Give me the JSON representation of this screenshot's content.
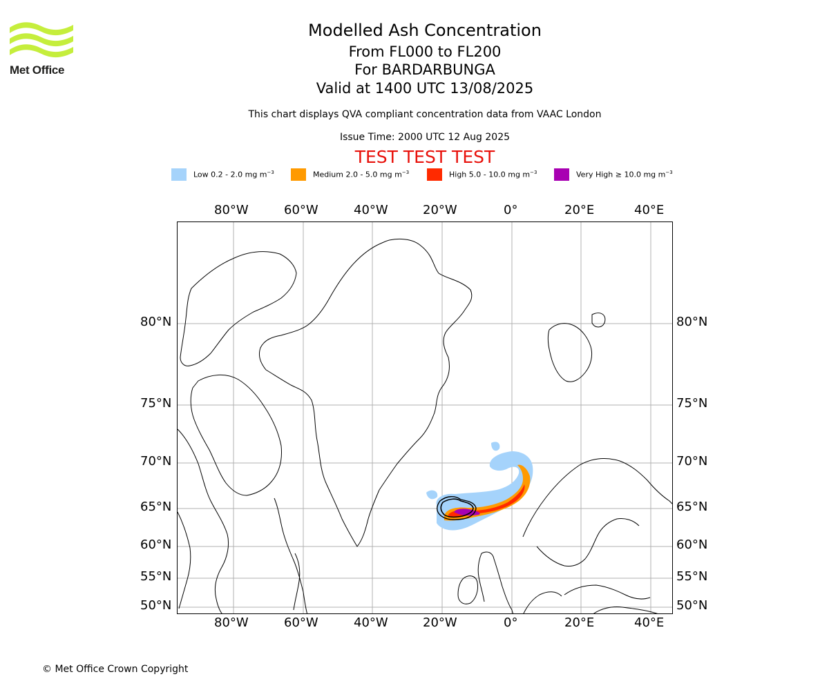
{
  "header": {
    "logo_text": "Met Office",
    "title": "Modelled Ash Concentration",
    "level_range": "From FL000 to FL200",
    "volcano": "For BARDARBUNGA",
    "valid_time": "Valid at 1400 UTC 13/08/2025",
    "subtitle": "This chart displays QVA compliant concentration data from VAAC London",
    "issue_time": "Issue Time: 2000 UTC 12 Aug 2025",
    "test_banner": "TEST TEST TEST"
  },
  "legend": [
    {
      "label": "Low 0.2 - 2.0 mg m",
      "unit_exp": "−3",
      "color": "#a5d3fb"
    },
    {
      "label": "Medium 2.0 - 5.0 mg m",
      "unit_exp": "−3",
      "color": "#ff9a00"
    },
    {
      "label": "High 5.0 - 10.0 mg m",
      "unit_exp": "−3",
      "color": "#ff2a00"
    },
    {
      "label": "Very High  ≥  10.0 mg m",
      "unit_exp": "−3",
      "color": "#a800b2"
    }
  ],
  "map": {
    "lon_labels": [
      "80°W",
      "60°W",
      "40°W",
      "20°W",
      "0°",
      "20°E",
      "40°E"
    ],
    "lat_labels": [
      "80°N",
      "75°N",
      "70°N",
      "65°N",
      "60°N",
      "55°N",
      "50°N"
    ],
    "gridlines": true,
    "coastline_color": "#000000",
    "gridline_color": "#b0b0b0"
  },
  "footer": {
    "copyright": "© Met Office Crown Copyright"
  }
}
